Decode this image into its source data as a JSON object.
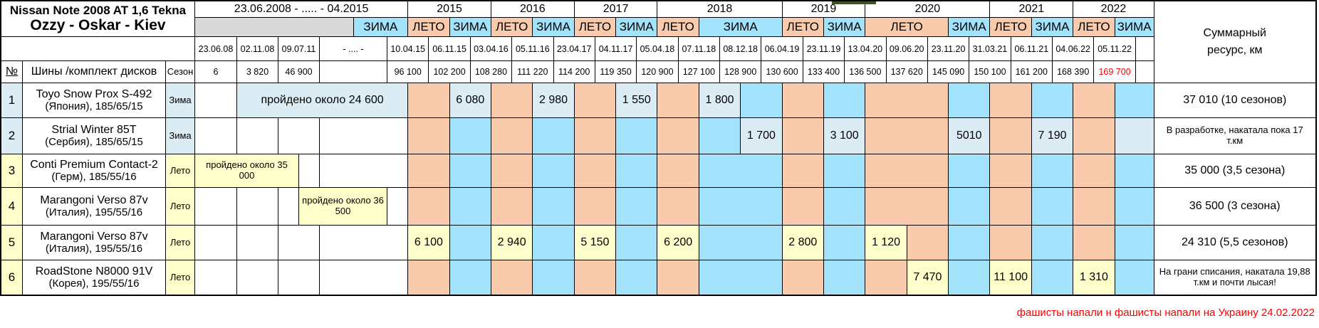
{
  "colors": {
    "winter_empty": "#a2e2fb",
    "summer_empty": "#f9caac",
    "winter_value": "#dcecf5",
    "summer_value": "#ffffcb",
    "gray_bar": "#d9d9d9",
    "green_marker": "#375623",
    "red": "#ff0000",
    "border": "#000000"
  },
  "title": {
    "line1": "Nissan Note 2008 AT 1,6 Tekna",
    "line2": "Ozzy - Oskar - Kiev"
  },
  "header": {
    "early_range": "23.06.2008 - ..... - 04.2015",
    "years": [
      "2015",
      "2016",
      "2017",
      "2018",
      "2019",
      "2020",
      "2021",
      "2022"
    ],
    "winter_label": "ЗИМА",
    "summer_label": "ЛЕТО",
    "col_num": "№",
    "col_tires": "Шины /комплект дисков",
    "col_season": "Сезон",
    "summary_line1": "Суммарный",
    "summary_line2": "ресурс, км",
    "dates": [
      "23.06.08",
      "02.11.08",
      "09.07.11",
      "- .... -",
      "10.04.15",
      "06.11.15",
      "03.04.16",
      "05.11.16",
      "23.04.17",
      "04.11.17",
      "05.04.18",
      "07.11.18",
      "08.12.18",
      "06.04.19",
      "23.11.19",
      "13.04.20",
      "09.06.20",
      "23.11.20",
      "31.03.21",
      "06.11.21",
      "04.06.22",
      "05.11.22"
    ],
    "odometer": [
      "6",
      "3 820",
      "46 900",
      "",
      "96 100",
      "102 200",
      "108 280",
      "111 220",
      "114 200",
      "119 350",
      "120 900",
      "127 100",
      "128 900",
      "130 600",
      "133 400",
      "136 500",
      "137 620",
      "145 090",
      "150 100",
      "161 200",
      "168 390",
      "169 700"
    ]
  },
  "rows": [
    {
      "num": "1",
      "name_lines": [
        "Toyo Snow Prox S-492",
        "(Япония), 185/65/15"
      ],
      "season": "Зима",
      "type": "winter",
      "note": "пройдено около 24 600",
      "values": {
        "5": "6 080",
        "7": "2 980",
        "9": "1 550",
        "11": "1 800"
      },
      "summary": "37 010 (10 сезонов)",
      "summary_small": false
    },
    {
      "num": "2",
      "name_lines": [
        "Strial Winter 85T",
        "(Сербия), 185/65/15"
      ],
      "season": "Зима",
      "type": "winter",
      "values": {
        "12": "1 700",
        "14": "3 100",
        "17": "5010",
        "19": "7 190"
      },
      "summary": "В разработке, накатала пока 17 т.км",
      "summary_small": true
    },
    {
      "num": "3",
      "name_lines": [
        "Conti Premium Contact-2",
        "(Герм), 185/55/16"
      ],
      "season": "Лето",
      "type": "summer",
      "note": "пройдено около 35 000",
      "values": {},
      "summary": "35 000 (3,5 сезона)",
      "summary_small": false
    },
    {
      "num": "4",
      "name_lines": [
        "Marangoni Verso 87v",
        "(Италия), 195/55/16"
      ],
      "season": "Лето",
      "type": "summer",
      "note": "пройдено около 36 500",
      "values": {},
      "summary": "36 500 (3 сезона)",
      "summary_small": false
    },
    {
      "num": "5",
      "name_lines": [
        "Marangoni Verso 87v",
        "(Италия), 195/55/16"
      ],
      "season": "Лето",
      "type": "summer",
      "values": {
        "4": "6 100",
        "6": "2 940",
        "8": "5 150",
        "10": "6 200",
        "13": "2 800",
        "15": "1 120"
      },
      "summary": "24 310 (5,5 сезонов)",
      "summary_small": false
    },
    {
      "num": "6",
      "name_lines": [
        "RoadStone N8000 91V",
        "(Корея), 195/55/16"
      ],
      "season": "Лето",
      "type": "summer",
      "values": {
        "16": "7 470",
        "18": "11 100",
        "20": "1 310"
      },
      "summary": "На грани списания, накатала 19,88 т.км и почти лысая!",
      "summary_small": true
    }
  ],
  "footer": {
    "note": "фашисты напали н фашисты напали на Украину 24.02.2022"
  }
}
